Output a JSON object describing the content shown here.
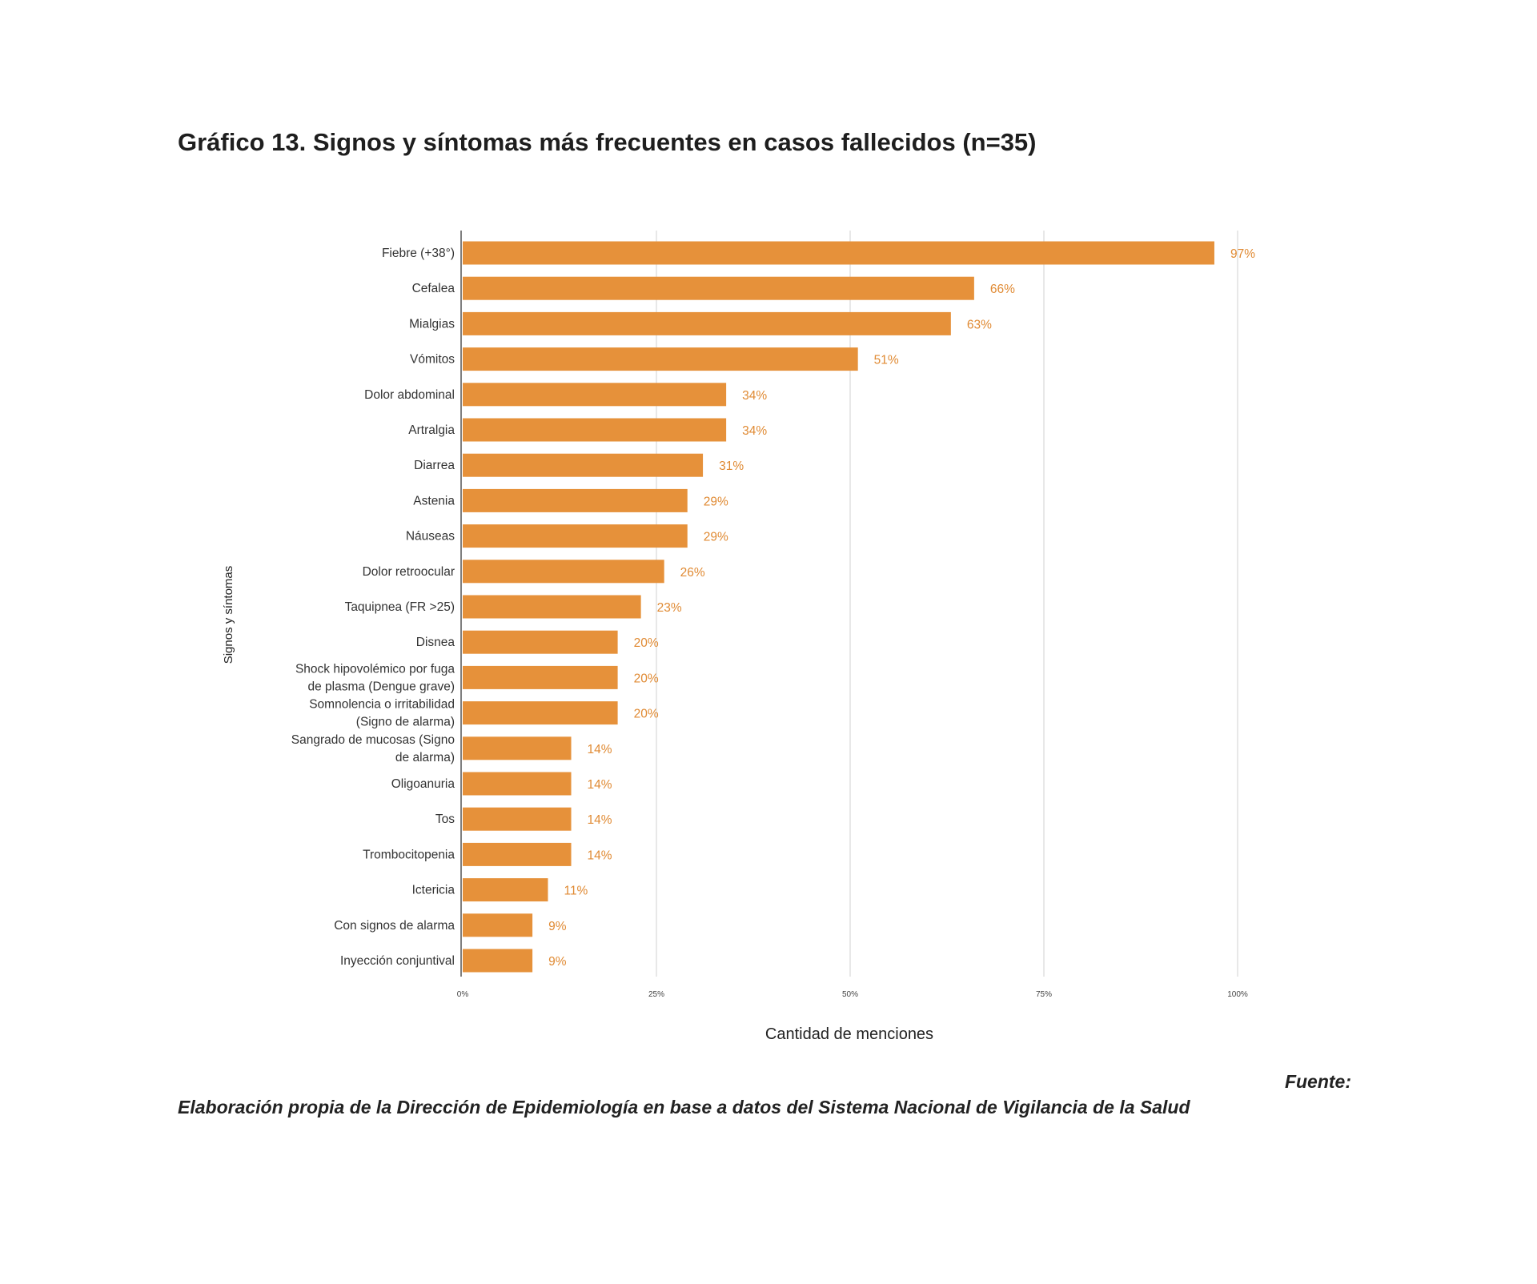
{
  "title": "Gráfico 13. Signos y síntomas más frecuentes en casos fallecidos (n=35)",
  "colors": {
    "bar": "#e6913a",
    "value_label": "#e08a33",
    "grid": "#d9d9d9"
  },
  "chart_data": {
    "type": "bar",
    "orientation": "horizontal",
    "xlabel": "Cantidad de menciones",
    "ylabel": "Signos y síntomas",
    "xlim": [
      0,
      100
    ],
    "x_ticks": [
      0,
      25,
      50,
      75,
      100
    ],
    "x_tick_labels": [
      "0%",
      "25%",
      "50%",
      "75%",
      "100%"
    ],
    "grid": true,
    "categories": [
      [
        "Fiebre (+38°)"
      ],
      [
        "Cefalea"
      ],
      [
        "Mialgias"
      ],
      [
        "Vómitos"
      ],
      [
        "Dolor abdominal"
      ],
      [
        "Artralgia"
      ],
      [
        "Diarrea"
      ],
      [
        "Astenia"
      ],
      [
        "Náuseas"
      ],
      [
        "Dolor retroocular"
      ],
      [
        "Taquipnea (FR >25)"
      ],
      [
        "Disnea"
      ],
      [
        "Shock hipovolémico por fuga",
        "de plasma (Dengue grave)"
      ],
      [
        "Somnolencia o irritabilidad",
        "(Signo de alarma)"
      ],
      [
        "Sangrado de mucosas (Signo",
        "de alarma)"
      ],
      [
        "Oligoanuria"
      ],
      [
        "Tos"
      ],
      [
        "Trombocitopenia"
      ],
      [
        "Ictericia"
      ],
      [
        "Con signos de alarma"
      ],
      [
        "Inyección conjuntival"
      ]
    ],
    "values": [
      97,
      66,
      63,
      51,
      34,
      34,
      31,
      29,
      29,
      26,
      23,
      20,
      20,
      20,
      14,
      14,
      14,
      14,
      11,
      9,
      9
    ],
    "value_labels": [
      "97%",
      "66%",
      "63%",
      "51%",
      "34%",
      "34%",
      "31%",
      "29%",
      "29%",
      "26%",
      "23%",
      "20%",
      "20%",
      "20%",
      "14%",
      "14%",
      "14%",
      "14%",
      "11%",
      "9%",
      "9%"
    ]
  },
  "source": {
    "label": "Fuente:",
    "text": "Elaboración propia de la Dirección de Epidemiología en base a datos del Sistema Nacional de Vigilancia de la Salud"
  }
}
